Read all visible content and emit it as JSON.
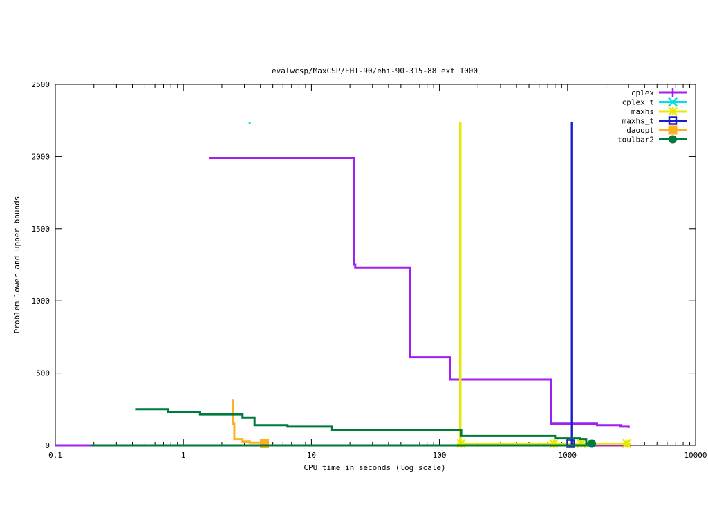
{
  "chart_data": {
    "type": "line",
    "title": "evalwcsp/MaxCSP/EHI-90/ehi-90-315-88_ext_1000",
    "xlabel": "CPU time in seconds (log scale)",
    "ylabel": "Problem lower and upper bounds",
    "xscale": "log",
    "xlim": [
      0.1,
      10000
    ],
    "ylim": [
      0,
      2500
    ],
    "x_ticks": [
      0.1,
      1,
      10,
      100,
      1000,
      10000
    ],
    "x_tick_labels": [
      "0.1",
      "1",
      "10",
      "100",
      "1000",
      "10000"
    ],
    "y_ticks": [
      0,
      500,
      1000,
      1500,
      2000,
      2500
    ],
    "y_tick_labels": [
      "0",
      "500",
      "1000",
      "1500",
      "2000",
      "2500"
    ],
    "grid": false,
    "legend_position": "top-right",
    "series": [
      {
        "name": "cplex",
        "color": "#a020f0",
        "marker": "plus",
        "points": [
          [
            1.6,
            1990
          ],
          [
            21.5,
            1990
          ],
          [
            21.5,
            1250
          ],
          [
            22,
            1250
          ],
          [
            22,
            1230
          ],
          [
            59,
            1230
          ],
          [
            59,
            610
          ],
          [
            121,
            610
          ],
          [
            121,
            455
          ],
          [
            740,
            455
          ],
          [
            740,
            150
          ],
          [
            1700,
            150
          ],
          [
            1700,
            140
          ],
          [
            2600,
            140
          ],
          [
            2600,
            130
          ],
          [
            3000,
            130
          ],
          [
            3000,
            120
          ]
        ],
        "lower_points": [
          [
            0.1,
            0
          ],
          [
            3000,
            0
          ]
        ]
      },
      {
        "name": "cplex_t",
        "color": "#00e0e0",
        "marker": "x",
        "points": [
          [
            3.3,
            2230
          ]
        ]
      },
      {
        "name": "maxhs",
        "color": "#e8e800",
        "marker": "star",
        "points": [
          [
            145,
            0
          ],
          [
            145,
            2230
          ],
          [
            146,
            2230
          ],
          [
            146,
            12
          ],
          [
            3000,
            12
          ]
        ],
        "marker_points": [
          [
            148,
            12
          ],
          [
            780,
            12
          ],
          [
            1280,
            12
          ],
          [
            2900,
            12
          ]
        ]
      },
      {
        "name": "maxhs_t",
        "color": "#1c1cc8",
        "marker": "square",
        "points": [
          [
            1080,
            0
          ],
          [
            1080,
            2230
          ],
          [
            1085,
            2230
          ],
          [
            1085,
            0
          ]
        ],
        "marker_points": [
          [
            1060,
            12
          ]
        ]
      },
      {
        "name": "daoopt",
        "color": "#ffb020",
        "marker": "filled-square",
        "points": [
          [
            2.45,
            320
          ],
          [
            2.45,
            150
          ],
          [
            2.5,
            150
          ],
          [
            2.5,
            40
          ],
          [
            2.9,
            40
          ],
          [
            2.9,
            25
          ],
          [
            3.3,
            25
          ],
          [
            3.3,
            18
          ],
          [
            4.3,
            18
          ]
        ],
        "marker_points": [
          [
            4.3,
            12
          ]
        ]
      },
      {
        "name": "toulbar2",
        "color": "#007a3a",
        "marker": "circle",
        "points": [
          [
            0.42,
            250
          ],
          [
            0.76,
            250
          ],
          [
            0.76,
            230
          ],
          [
            1.35,
            230
          ],
          [
            1.35,
            215
          ],
          [
            2.9,
            215
          ],
          [
            2.9,
            190
          ],
          [
            3.6,
            190
          ],
          [
            3.6,
            140
          ],
          [
            6.5,
            140
          ],
          [
            6.5,
            130
          ],
          [
            14.5,
            130
          ],
          [
            14.5,
            105
          ],
          [
            148,
            105
          ],
          [
            148,
            65
          ],
          [
            800,
            65
          ],
          [
            800,
            50
          ],
          [
            1250,
            50
          ],
          [
            1250,
            40
          ],
          [
            1400,
            40
          ],
          [
            1400,
            15
          ],
          [
            1550,
            15
          ]
        ],
        "lower_points": [
          [
            0.19,
            0
          ],
          [
            1550,
            0
          ]
        ],
        "marker_points": [
          [
            1550,
            12
          ]
        ]
      }
    ]
  }
}
